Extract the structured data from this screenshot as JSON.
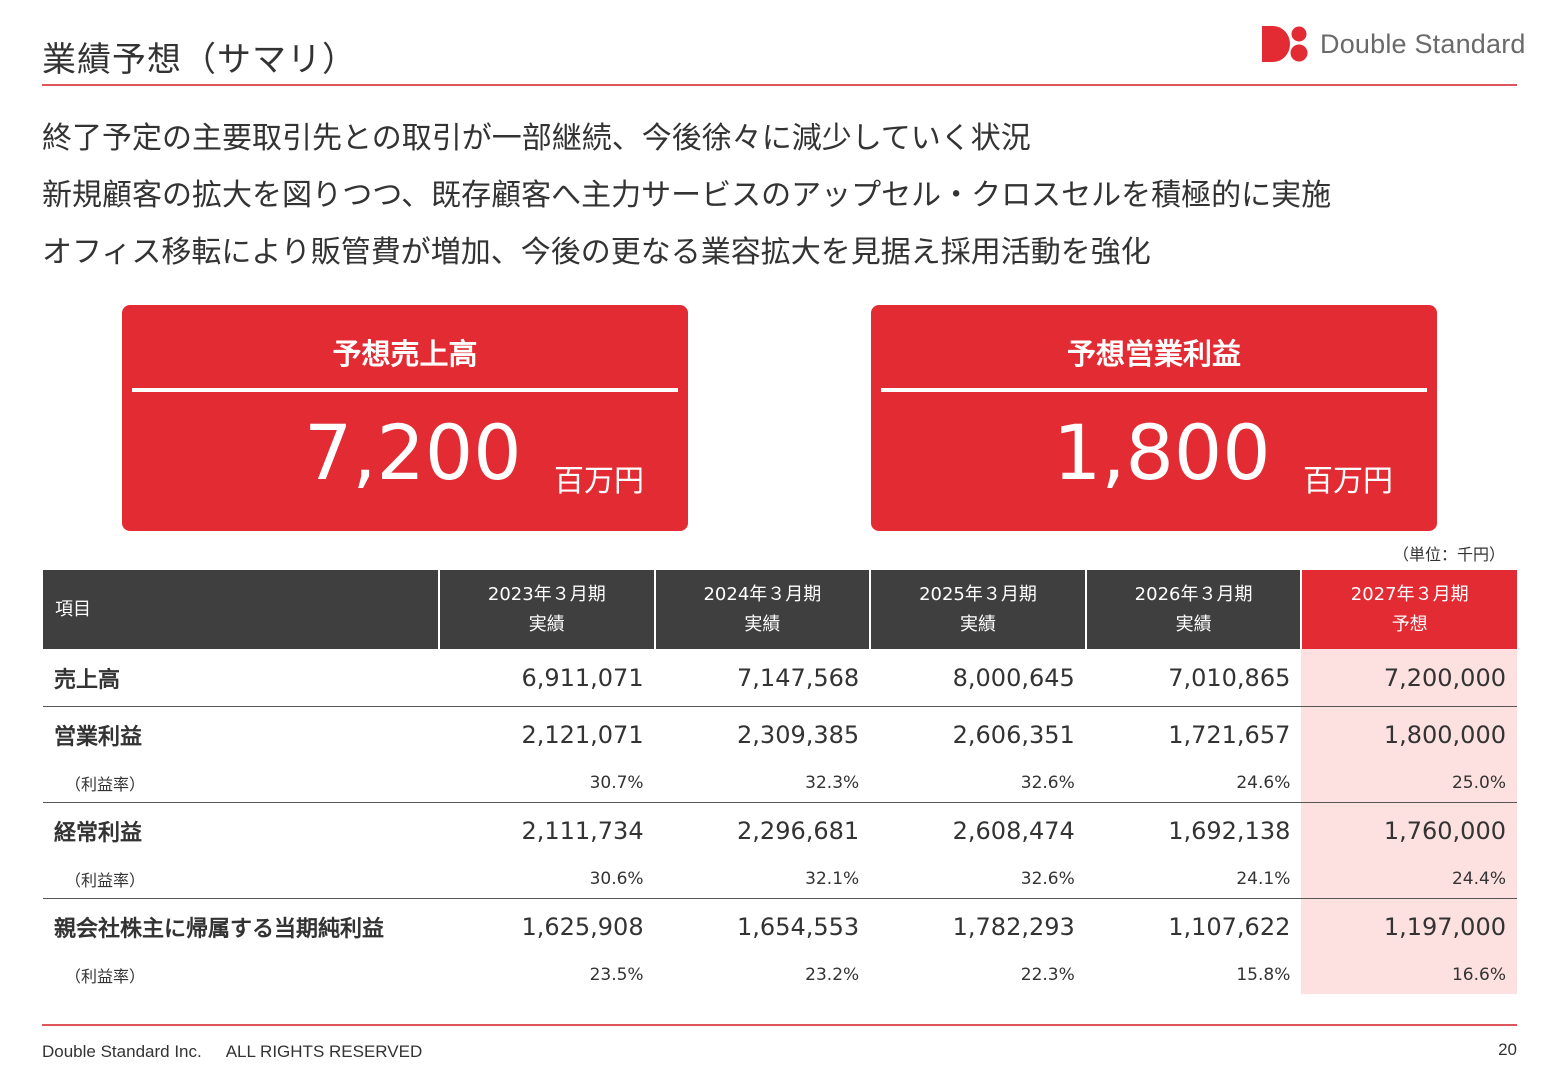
{
  "header": {
    "title": "業績予想（サマリ）",
    "logo": {
      "name": "Double Standard",
      "mark_color": "#e32b33"
    }
  },
  "bullets": [
    "終了予定の主要取引先との取引が一部継続、今後徐々に減少していく状況",
    "新規顧客の拡大を図りつつ、既存顧客へ主力サービスのアップセル・クロスセルを積極的に実施",
    "オフィス移転により販管費が増加、今後の更なる業容拡大を見据え採用活動を強化"
  ],
  "kpis": [
    {
      "label": "予想売上高",
      "value": "7,200",
      "unit": "百万円"
    },
    {
      "label": "予想営業利益",
      "value": "1,800",
      "unit": "百万円"
    }
  ],
  "table": {
    "unit_note": "（単位：千円）",
    "header": {
      "item": "項目",
      "periods": [
        {
          "year": "2023年３月期",
          "type": "実績"
        },
        {
          "year": "2024年３月期",
          "type": "実績"
        },
        {
          "year": "2025年３月期",
          "type": "実績"
        },
        {
          "year": "2026年３月期",
          "type": "実績"
        },
        {
          "year": "2027年３月期",
          "type": "予想"
        }
      ]
    },
    "rows": [
      {
        "label": "売上高",
        "values": [
          "6,911,071",
          "7,147,568",
          "8,000,645",
          "7,010,865",
          "7,200,000"
        ]
      },
      {
        "label": "営業利益",
        "values": [
          "2,121,071",
          "2,309,385",
          "2,606,351",
          "1,721,657",
          "1,800,000"
        ],
        "sub_label": "（利益率）",
        "sub_values": [
          "30.7%",
          "32.3%",
          "32.6%",
          "24.6%",
          "25.0%"
        ]
      },
      {
        "label": "経常利益",
        "values": [
          "2,111,734",
          "2,296,681",
          "2,608,474",
          "1,692,138",
          "1,760,000"
        ],
        "sub_label": "（利益率）",
        "sub_values": [
          "30.6%",
          "32.1%",
          "32.6%",
          "24.1%",
          "24.4%"
        ]
      },
      {
        "label": "親会社株主に帰属する当期純利益",
        "values": [
          "1,625,908",
          "1,654,553",
          "1,782,293",
          "1,107,622",
          "1,197,000"
        ],
        "sub_label": "（利益率）",
        "sub_values": [
          "23.5%",
          "23.2%",
          "22.3%",
          "15.8%",
          "16.6%"
        ]
      }
    ]
  },
  "footer": {
    "company": "Double Standard Inc.",
    "rights": "ALL RIGHTS RESERVED",
    "page": "20"
  },
  "colors": {
    "accent": "#e32b33",
    "header_dark": "#3f3f3f",
    "forecast_bg": "#fde0e0",
    "rule": "#e0555a"
  }
}
